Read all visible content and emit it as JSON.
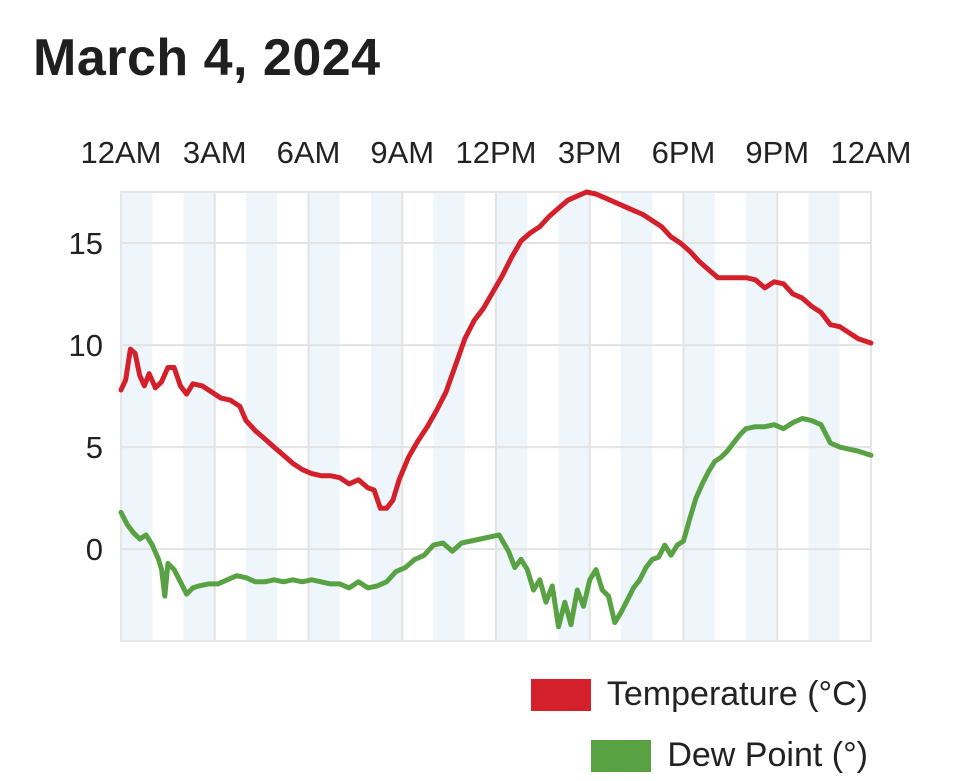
{
  "chart_data": {
    "type": "line",
    "title": "March 4, 2024",
    "x_unit": "hour of day",
    "xlim": [
      0,
      24
    ],
    "x_ticks": [
      0,
      3,
      6,
      9,
      12,
      15,
      18,
      21,
      24
    ],
    "x_tick_labels": [
      "12AM",
      "3AM",
      "6AM",
      "9AM",
      "12PM",
      "3PM",
      "6PM",
      "9PM",
      "12AM"
    ],
    "ylim": [
      -4.5,
      17.5
    ],
    "y_ticks": [
      0,
      5,
      10,
      15
    ],
    "y_tick_labels": [
      "0",
      "5",
      "10",
      "15"
    ],
    "grid": true,
    "legend_position": "bottom-right",
    "series": [
      {
        "name": "Temperature (°C)",
        "color": "#d3202a",
        "points": [
          [
            0,
            7.8
          ],
          [
            0.15,
            8.3
          ],
          [
            0.3,
            9.8
          ],
          [
            0.45,
            9.6
          ],
          [
            0.6,
            8.5
          ],
          [
            0.75,
            8.0
          ],
          [
            0.9,
            8.6
          ],
          [
            1.1,
            7.9
          ],
          [
            1.3,
            8.2
          ],
          [
            1.5,
            8.9
          ],
          [
            1.7,
            8.9
          ],
          [
            1.9,
            8.0
          ],
          [
            2.1,
            7.6
          ],
          [
            2.3,
            8.1
          ],
          [
            2.6,
            8.0
          ],
          [
            2.9,
            7.7
          ],
          [
            3.2,
            7.4
          ],
          [
            3.5,
            7.3
          ],
          [
            3.8,
            7.0
          ],
          [
            4.0,
            6.3
          ],
          [
            4.3,
            5.8
          ],
          [
            4.6,
            5.4
          ],
          [
            4.9,
            5.0
          ],
          [
            5.2,
            4.6
          ],
          [
            5.5,
            4.2
          ],
          [
            5.8,
            3.9
          ],
          [
            6.1,
            3.7
          ],
          [
            6.4,
            3.6
          ],
          [
            6.7,
            3.6
          ],
          [
            7.0,
            3.5
          ],
          [
            7.3,
            3.2
          ],
          [
            7.6,
            3.4
          ],
          [
            7.9,
            3.0
          ],
          [
            8.1,
            2.9
          ],
          [
            8.3,
            2.0
          ],
          [
            8.5,
            2.0
          ],
          [
            8.7,
            2.4
          ],
          [
            8.9,
            3.4
          ],
          [
            9.2,
            4.5
          ],
          [
            9.5,
            5.3
          ],
          [
            9.8,
            6.0
          ],
          [
            10.1,
            6.8
          ],
          [
            10.4,
            7.7
          ],
          [
            10.7,
            9.0
          ],
          [
            11.0,
            10.3
          ],
          [
            11.3,
            11.2
          ],
          [
            11.6,
            11.8
          ],
          [
            11.9,
            12.6
          ],
          [
            12.2,
            13.4
          ],
          [
            12.5,
            14.3
          ],
          [
            12.8,
            15.1
          ],
          [
            13.1,
            15.5
          ],
          [
            13.4,
            15.8
          ],
          [
            13.7,
            16.3
          ],
          [
            14.0,
            16.7
          ],
          [
            14.3,
            17.1
          ],
          [
            14.6,
            17.3
          ],
          [
            14.9,
            17.5
          ],
          [
            15.2,
            17.4
          ],
          [
            15.5,
            17.2
          ],
          [
            15.8,
            17.0
          ],
          [
            16.1,
            16.8
          ],
          [
            16.4,
            16.6
          ],
          [
            16.7,
            16.4
          ],
          [
            17.0,
            16.1
          ],
          [
            17.3,
            15.8
          ],
          [
            17.6,
            15.3
          ],
          [
            17.9,
            15.0
          ],
          [
            18.2,
            14.6
          ],
          [
            18.5,
            14.1
          ],
          [
            18.8,
            13.7
          ],
          [
            19.1,
            13.3
          ],
          [
            19.4,
            13.3
          ],
          [
            19.7,
            13.3
          ],
          [
            20.0,
            13.3
          ],
          [
            20.3,
            13.2
          ],
          [
            20.6,
            12.8
          ],
          [
            20.9,
            13.1
          ],
          [
            21.2,
            13.0
          ],
          [
            21.5,
            12.5
          ],
          [
            21.8,
            12.3
          ],
          [
            22.1,
            11.9
          ],
          [
            22.4,
            11.6
          ],
          [
            22.7,
            11.0
          ],
          [
            23.0,
            10.9
          ],
          [
            23.3,
            10.6
          ],
          [
            23.6,
            10.3
          ],
          [
            24.0,
            10.1
          ]
        ]
      },
      {
        "name": "Dew Point (°)",
        "color": "#59a244",
        "points": [
          [
            0,
            1.8
          ],
          [
            0.2,
            1.2
          ],
          [
            0.4,
            0.8
          ],
          [
            0.6,
            0.5
          ],
          [
            0.8,
            0.7
          ],
          [
            1.0,
            0.2
          ],
          [
            1.2,
            -0.5
          ],
          [
            1.3,
            -1.0
          ],
          [
            1.4,
            -2.3
          ],
          [
            1.5,
            -0.7
          ],
          [
            1.7,
            -1.0
          ],
          [
            1.9,
            -1.6
          ],
          [
            2.1,
            -2.2
          ],
          [
            2.3,
            -1.9
          ],
          [
            2.5,
            -1.8
          ],
          [
            2.8,
            -1.7
          ],
          [
            3.1,
            -1.7
          ],
          [
            3.4,
            -1.5
          ],
          [
            3.7,
            -1.3
          ],
          [
            4.0,
            -1.4
          ],
          [
            4.3,
            -1.6
          ],
          [
            4.6,
            -1.6
          ],
          [
            4.9,
            -1.5
          ],
          [
            5.2,
            -1.6
          ],
          [
            5.5,
            -1.5
          ],
          [
            5.8,
            -1.6
          ],
          [
            6.1,
            -1.5
          ],
          [
            6.4,
            -1.6
          ],
          [
            6.7,
            -1.7
          ],
          [
            7.0,
            -1.7
          ],
          [
            7.3,
            -1.9
          ],
          [
            7.6,
            -1.6
          ],
          [
            7.9,
            -1.9
          ],
          [
            8.2,
            -1.8
          ],
          [
            8.5,
            -1.6
          ],
          [
            8.8,
            -1.1
          ],
          [
            9.1,
            -0.9
          ],
          [
            9.4,
            -0.5
          ],
          [
            9.7,
            -0.3
          ],
          [
            10.0,
            0.2
          ],
          [
            10.3,
            0.3
          ],
          [
            10.6,
            -0.1
          ],
          [
            10.9,
            0.3
          ],
          [
            11.2,
            0.4
          ],
          [
            11.5,
            0.5
          ],
          [
            11.8,
            0.6
          ],
          [
            12.1,
            0.7
          ],
          [
            12.4,
            -0.1
          ],
          [
            12.6,
            -0.9
          ],
          [
            12.8,
            -0.5
          ],
          [
            13.0,
            -1.0
          ],
          [
            13.2,
            -2.0
          ],
          [
            13.4,
            -1.5
          ],
          [
            13.6,
            -2.6
          ],
          [
            13.8,
            -1.8
          ],
          [
            14.0,
            -3.8
          ],
          [
            14.2,
            -2.6
          ],
          [
            14.4,
            -3.7
          ],
          [
            14.6,
            -2.0
          ],
          [
            14.8,
            -2.8
          ],
          [
            15.0,
            -1.5
          ],
          [
            15.2,
            -1.0
          ],
          [
            15.4,
            -2.0
          ],
          [
            15.6,
            -2.3
          ],
          [
            15.8,
            -3.6
          ],
          [
            16.0,
            -3.1
          ],
          [
            16.2,
            -2.5
          ],
          [
            16.4,
            -1.9
          ],
          [
            16.6,
            -1.5
          ],
          [
            16.8,
            -0.9
          ],
          [
            17.0,
            -0.5
          ],
          [
            17.2,
            -0.4
          ],
          [
            17.4,
            0.2
          ],
          [
            17.6,
            -0.3
          ],
          [
            17.8,
            0.2
          ],
          [
            18.0,
            0.4
          ],
          [
            18.2,
            1.5
          ],
          [
            18.4,
            2.5
          ],
          [
            18.6,
            3.2
          ],
          [
            18.8,
            3.8
          ],
          [
            19.0,
            4.3
          ],
          [
            19.2,
            4.5
          ],
          [
            19.4,
            4.8
          ],
          [
            19.6,
            5.2
          ],
          [
            19.8,
            5.6
          ],
          [
            20.0,
            5.9
          ],
          [
            20.3,
            6.0
          ],
          [
            20.6,
            6.0
          ],
          [
            20.9,
            6.1
          ],
          [
            21.2,
            5.9
          ],
          [
            21.5,
            6.2
          ],
          [
            21.8,
            6.4
          ],
          [
            22.1,
            6.3
          ],
          [
            22.4,
            6.1
          ],
          [
            22.7,
            5.2
          ],
          [
            23.0,
            5.0
          ],
          [
            23.3,
            4.9
          ],
          [
            23.6,
            4.8
          ],
          [
            24.0,
            4.6
          ]
        ]
      }
    ]
  }
}
